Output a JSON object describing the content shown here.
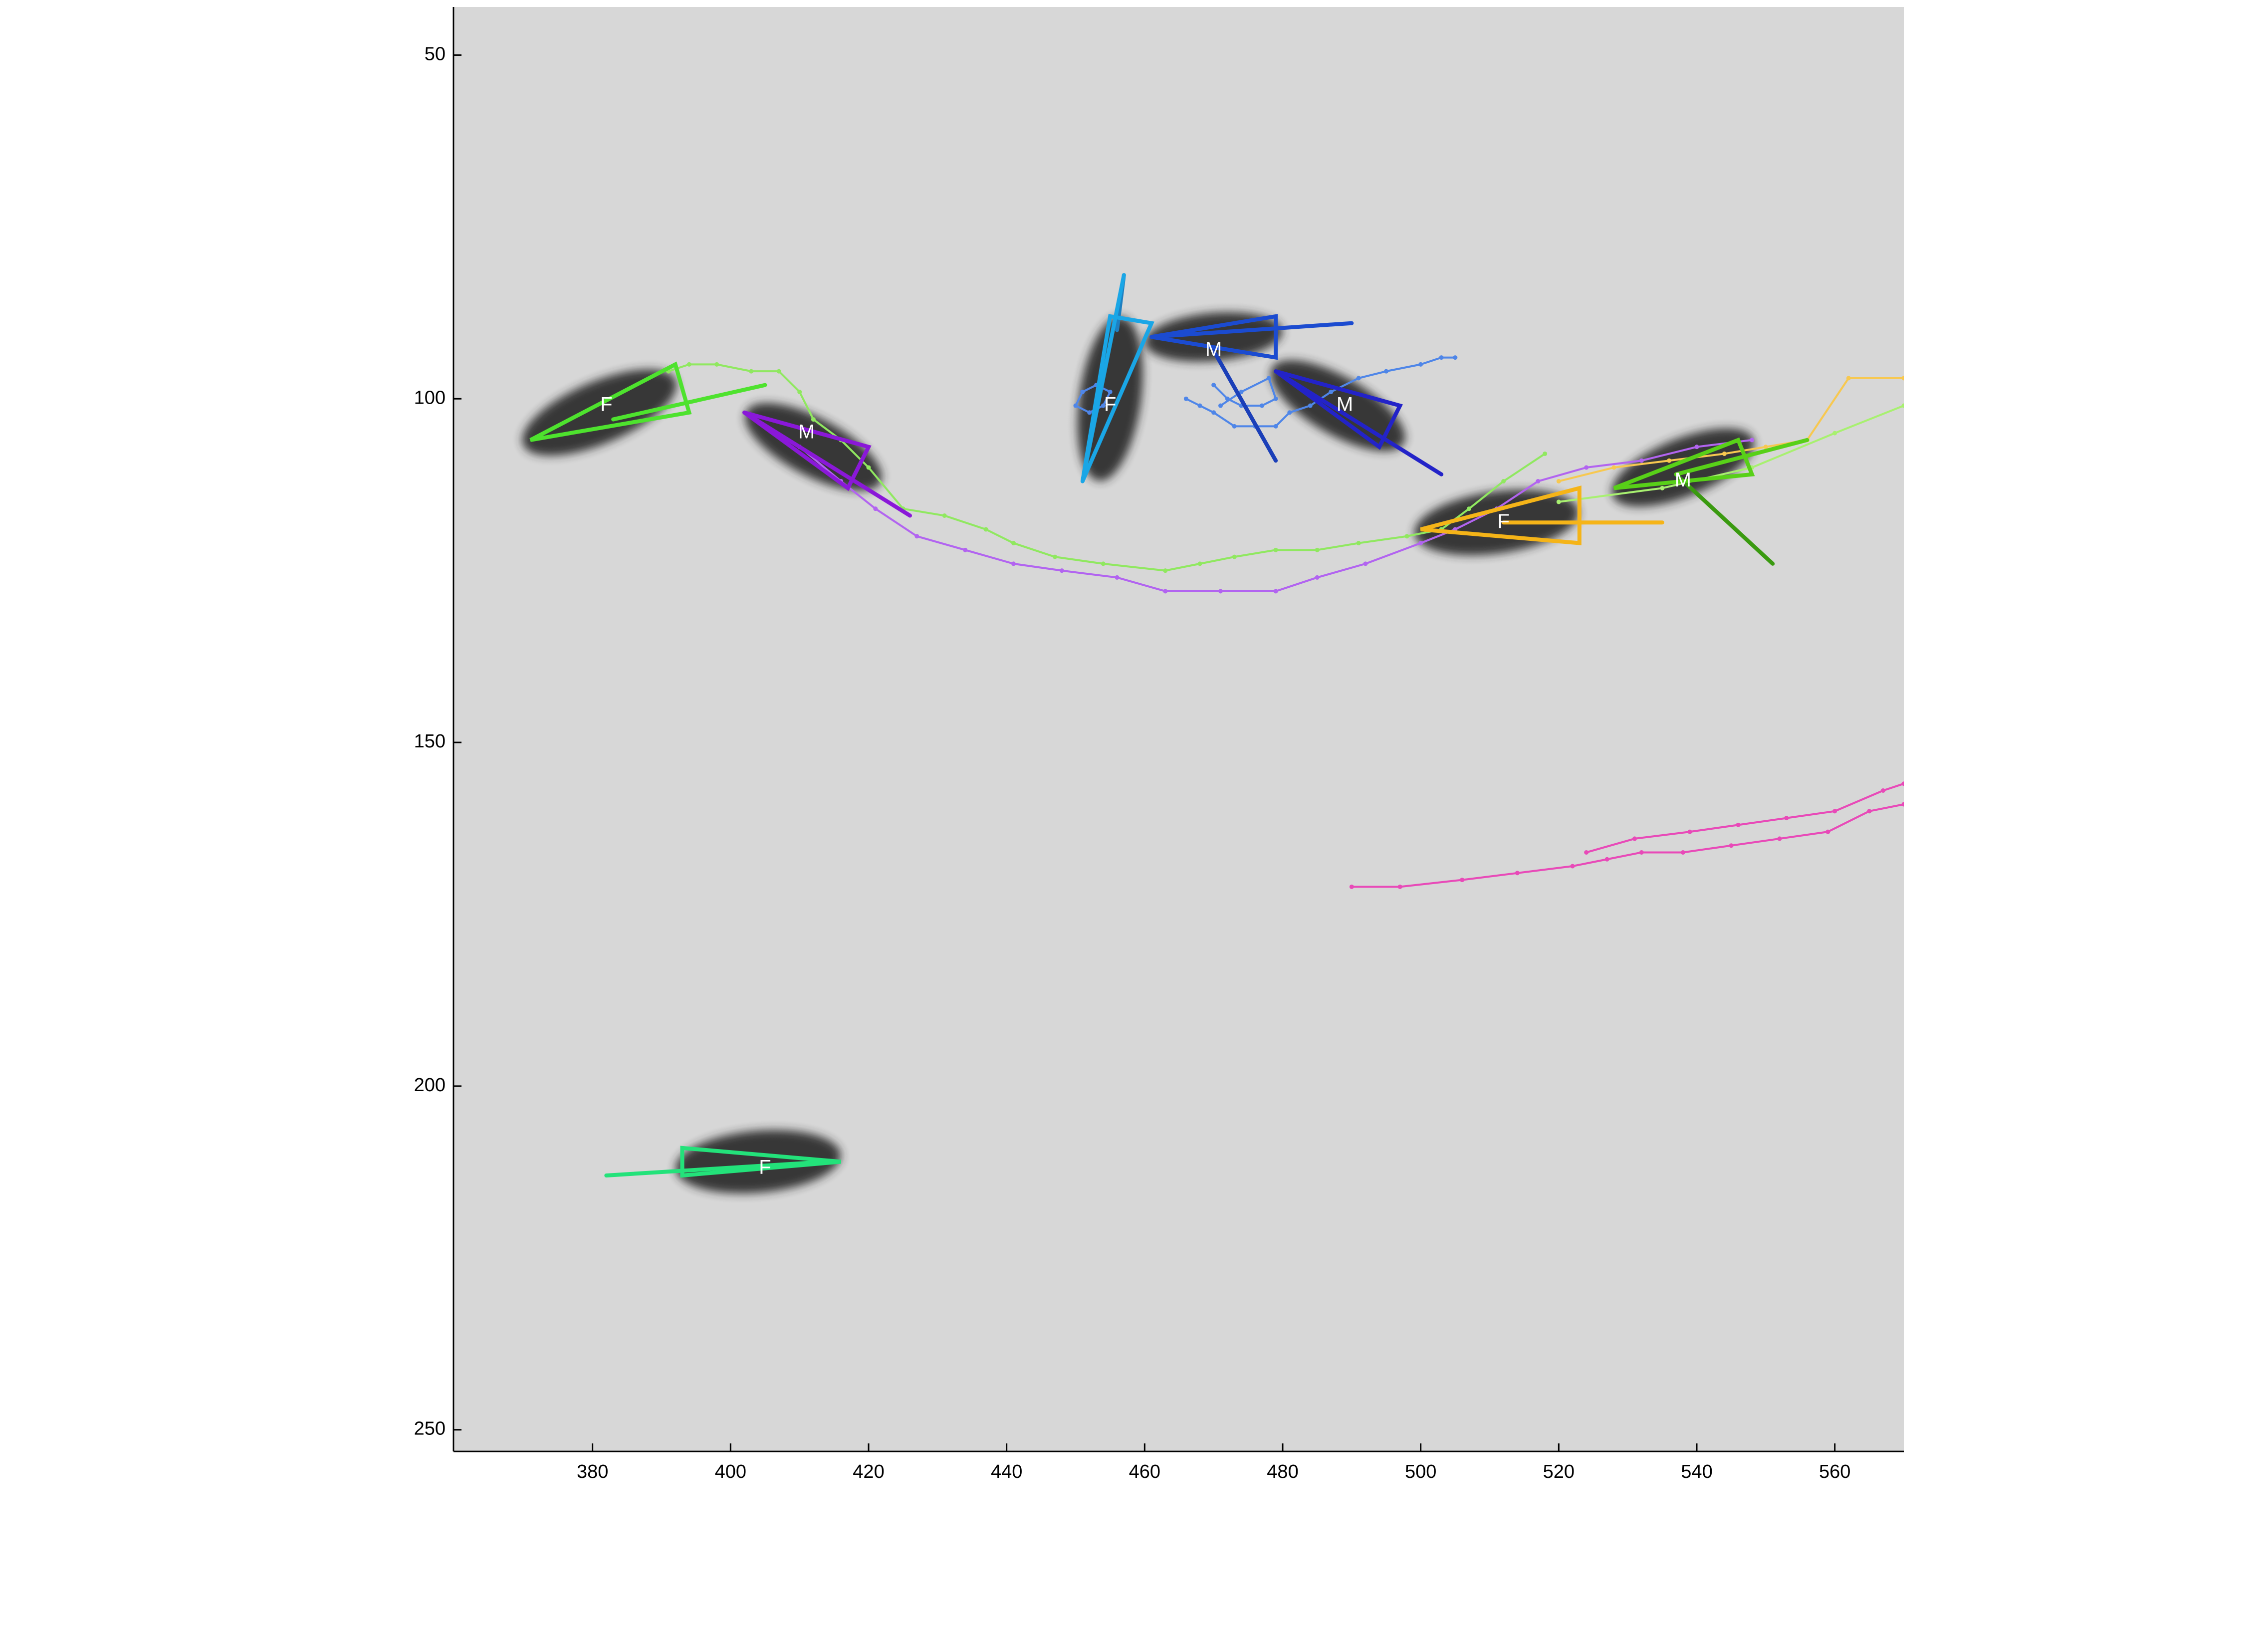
{
  "figure": {
    "background": "#ffffff",
    "image_bg": "#d7d7d7"
  },
  "axes": {
    "x_range": [
      360,
      570
    ],
    "y_range": [
      43,
      253
    ],
    "y_reversed": true,
    "x_ticks": [
      "380",
      "400",
      "420",
      "440",
      "460",
      "480",
      "500",
      "520",
      "540",
      "560"
    ],
    "y_ticks": [
      "50",
      "100",
      "150",
      "200",
      "250"
    ],
    "grid": false
  },
  "flies": [
    {
      "label": "F",
      "color": "#4ee22e",
      "body": [
        [
          371,
          106
        ],
        [
          392,
          95
        ],
        [
          394,
          102
        ]
      ],
      "line": [
        [
          383,
          103
        ],
        [
          405,
          98
        ]
      ],
      "label_pos": [
        382,
        101
      ]
    },
    {
      "label": "M",
      "color": "#8a18d8",
      "body": [
        [
          402,
          102
        ],
        [
          420,
          107
        ],
        [
          417,
          113
        ]
      ],
      "line": [
        [
          402,
          102
        ],
        [
          426,
          117
        ]
      ],
      "label_pos": [
        411,
        105
      ]
    },
    {
      "label": "F",
      "color": "#1aa6e6",
      "body": [
        [
          451,
          112
        ],
        [
          455,
          88
        ],
        [
          461,
          89
        ]
      ],
      "line": [
        [
          457,
          82
        ],
        [
          451,
          112
        ]
      ],
      "label_pos": [
        455,
        101
      ]
    },
    {
      "label": "M",
      "color": "#1b4bd0",
      "body": [
        [
          461,
          91
        ],
        [
          479,
          88
        ],
        [
          479,
          94
        ]
      ],
      "line": [
        [
          461,
          91
        ],
        [
          490,
          89
        ]
      ],
      "label_pos": [
        470,
        93
      ]
    },
    {
      "label": "M",
      "color": "#2323c8",
      "body": [
        [
          479,
          96
        ],
        [
          497,
          101
        ],
        [
          494,
          107
        ]
      ],
      "line": [
        [
          479,
          96
        ],
        [
          503,
          111
        ]
      ],
      "label_pos": [
        489,
        101
      ]
    },
    {
      "label": "F",
      "color": "#f5b418",
      "body": [
        [
          500,
          119
        ],
        [
          523,
          113
        ],
        [
          523,
          121
        ]
      ],
      "line": [
        [
          512,
          118
        ],
        [
          535,
          118
        ]
      ],
      "label_pos": [
        512,
        118
      ]
    },
    {
      "label": "M",
      "color": "#58d018",
      "body": [
        [
          528,
          113
        ],
        [
          546,
          106
        ],
        [
          548,
          111
        ]
      ],
      "line": [
        [
          537,
          111
        ],
        [
          556,
          106
        ]
      ],
      "label_pos": [
        538,
        112
      ]
    },
    {
      "label": "F",
      "color": "#23e27a",
      "body": [
        [
          393,
          209
        ],
        [
          416,
          211
        ],
        [
          393,
          213
        ]
      ],
      "line": [
        [
          382,
          213
        ],
        [
          414,
          211
        ]
      ],
      "label_pos": [
        405,
        212
      ]
    }
  ],
  "extra_lines": [
    {
      "color": "#1e7fc0",
      "points": [
        [
          457,
          82
        ],
        [
          456,
          90
        ]
      ]
    },
    {
      "color": "#1b3fb8",
      "points": [
        [
          470,
          93
        ],
        [
          479,
          109
        ]
      ]
    },
    {
      "color": "#3a9a10",
      "points": [
        [
          537,
          111
        ],
        [
          551,
          124
        ]
      ]
    }
  ],
  "trajectories": [
    {
      "color": "#90e860",
      "points": [
        [
          391,
          96
        ],
        [
          394,
          95
        ],
        [
          398,
          95
        ],
        [
          403,
          96
        ],
        [
          407,
          96
        ],
        [
          410,
          99
        ],
        [
          412,
          103
        ],
        [
          416,
          106
        ],
        [
          420,
          110
        ],
        [
          425,
          116
        ],
        [
          431,
          117
        ],
        [
          437,
          119
        ],
        [
          441,
          121
        ],
        [
          447,
          123
        ],
        [
          454,
          124
        ],
        [
          463,
          125
        ],
        [
          468,
          124
        ],
        [
          473,
          123
        ],
        [
          479,
          122
        ],
        [
          485,
          122
        ],
        [
          491,
          121
        ],
        [
          498,
          120
        ],
        [
          503,
          119
        ],
        [
          507,
          116
        ],
        [
          512,
          112
        ],
        [
          518,
          108
        ]
      ]
    },
    {
      "color": "#b264f0",
      "points": [
        [
          410,
          107
        ],
        [
          416,
          112
        ],
        [
          421,
          116
        ],
        [
          427,
          120
        ],
        [
          434,
          122
        ],
        [
          441,
          124
        ],
        [
          448,
          125
        ],
        [
          456,
          126
        ],
        [
          463,
          128
        ],
        [
          471,
          128
        ],
        [
          479,
          128
        ],
        [
          485,
          126
        ],
        [
          492,
          124
        ],
        [
          500,
          121
        ],
        [
          505,
          119
        ],
        [
          511,
          116
        ],
        [
          517,
          112
        ],
        [
          524,
          110
        ],
        [
          532,
          109
        ],
        [
          540,
          107
        ],
        [
          548,
          106
        ]
      ]
    },
    {
      "color": "#f7c850",
      "points": [
        [
          520,
          112
        ],
        [
          528,
          110
        ],
        [
          536,
          109
        ],
        [
          544,
          108
        ],
        [
          550,
          107
        ],
        [
          556,
          106
        ],
        [
          562,
          97
        ],
        [
          570,
          97
        ]
      ]
    },
    {
      "color": "#a8f070",
      "points": [
        [
          520,
          115
        ],
        [
          535,
          113
        ],
        [
          548,
          110
        ],
        [
          560,
          105
        ],
        [
          570,
          101
        ]
      ]
    },
    {
      "color": "#e84ab8",
      "points": [
        [
          490,
          171
        ],
        [
          497,
          171
        ],
        [
          506,
          170
        ],
        [
          514,
          169
        ],
        [
          522,
          168
        ],
        [
          527,
          167
        ],
        [
          532,
          166
        ],
        [
          538,
          166
        ],
        [
          545,
          165
        ],
        [
          552,
          164
        ],
        [
          559,
          163
        ],
        [
          565,
          160
        ],
        [
          570,
          159
        ]
      ]
    },
    {
      "color": "#e84ab8",
      "points": [
        [
          524,
          166
        ],
        [
          531,
          164
        ],
        [
          539,
          163
        ],
        [
          546,
          162
        ],
        [
          553,
          161
        ],
        [
          560,
          160
        ],
        [
          567,
          157
        ],
        [
          570,
          156
        ]
      ]
    },
    {
      "color": "#4f86e8",
      "points": [
        [
          466,
          100
        ],
        [
          468,
          101
        ],
        [
          470,
          102
        ],
        [
          473,
          104
        ],
        [
          476,
          104
        ],
        [
          479,
          104
        ],
        [
          481,
          102
        ],
        [
          484,
          101
        ],
        [
          487,
          99
        ],
        [
          491,
          97
        ],
        [
          495,
          96
        ],
        [
          500,
          95
        ],
        [
          503,
          94
        ],
        [
          505,
          94
        ]
      ]
    },
    {
      "color": "#4f86e8",
      "points": [
        [
          451,
          99
        ],
        [
          453,
          98
        ],
        [
          455,
          99
        ],
        [
          454,
          101
        ],
        [
          452,
          102
        ],
        [
          450,
          101
        ],
        [
          451,
          99
        ]
      ]
    },
    {
      "color": "#4f86e8",
      "points": [
        [
          470,
          98
        ],
        [
          472,
          100
        ],
        [
          474,
          101
        ],
        [
          477,
          101
        ],
        [
          479,
          100
        ],
        [
          478,
          97
        ],
        [
          474,
          99
        ],
        [
          471,
          101
        ]
      ]
    }
  ],
  "blobs": [
    {
      "cx": 381,
      "cy": 102,
      "rx": 12,
      "ry": 4.5,
      "angle": -23
    },
    {
      "cx": 412,
      "cy": 107,
      "rx": 11,
      "ry": 4.2,
      "angle": 28
    },
    {
      "cx": 455,
      "cy": 100,
      "rx": 12,
      "ry": 4.5,
      "angle": -82
    },
    {
      "cx": 470,
      "cy": 91,
      "rx": 10,
      "ry": 3.5,
      "angle": -5
    },
    {
      "cx": 488,
      "cy": 101,
      "rx": 11,
      "ry": 4.2,
      "angle": 30
    },
    {
      "cx": 511,
      "cy": 118,
      "rx": 12,
      "ry": 4.5,
      "angle": -8
    },
    {
      "cx": 538,
      "cy": 110,
      "rx": 11,
      "ry": 4.2,
      "angle": -22
    },
    {
      "cx": 404,
      "cy": 211,
      "rx": 12,
      "ry": 4.5,
      "angle": -5
    }
  ]
}
